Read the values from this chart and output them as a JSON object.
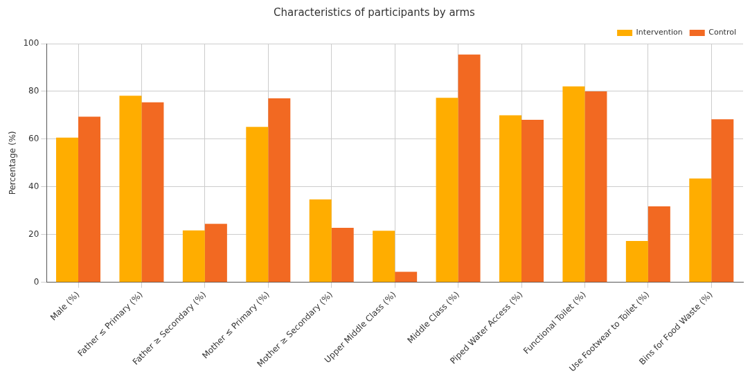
{
  "chart_data": {
    "type": "bar",
    "title": "Characteristics of participants by arms",
    "ylabel": "Percentage (%)",
    "categories": [
      "Male (%)",
      "Father ≤ Primary (%)",
      "Father ≥ Secondary (%)",
      "Mother ≤ Primary (%)",
      "Mother ≥ Secondary (%)",
      "Upper Middle Class (%)",
      "Middle Class (%)",
      "Piped Water Access (%)",
      "Functional Toilet (%)",
      "Use Footwear to Toilet (%)",
      "Bins for Food Waste (%)"
    ],
    "series": [
      {
        "name": "Intervention",
        "color": "#ffad00",
        "values": [
          60.6,
          78.2,
          21.7,
          65.1,
          34.7,
          21.6,
          77.3,
          70.0,
          82.1,
          17.3,
          43.5
        ]
      },
      {
        "name": "Control",
        "color": "#f26922",
        "values": [
          69.4,
          75.4,
          24.5,
          77.1,
          22.8,
          4.4,
          95.4,
          68.1,
          80.0,
          31.8,
          68.3
        ]
      }
    ],
    "ylim": [
      0,
      100
    ],
    "yticks": [
      0,
      20,
      40,
      60,
      80,
      100
    ],
    "grid": true,
    "legend": "top right"
  }
}
